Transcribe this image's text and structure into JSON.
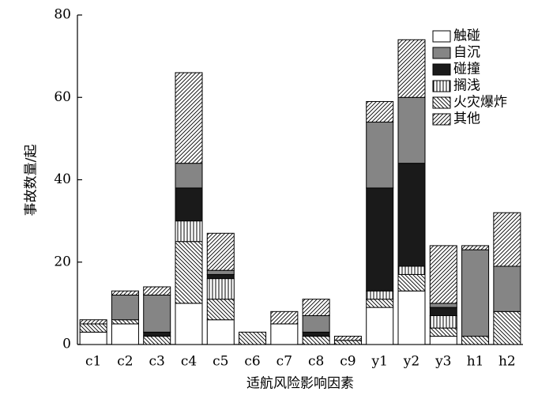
{
  "chart_data": {
    "type": "stacked-bar",
    "xlabel": "适航风险影响因素",
    "ylabel": "事故数量/起",
    "categories": [
      "c1",
      "c2",
      "c3",
      "c4",
      "c5",
      "c6",
      "c7",
      "c8",
      "c9",
      "y1",
      "y2",
      "y3",
      "h1",
      "h2"
    ],
    "series": [
      {
        "name": "触碰",
        "color": "#ffffff",
        "values": [
          3,
          5,
          0,
          10,
          6,
          0,
          5,
          0,
          0,
          9,
          13,
          2,
          0,
          0
        ]
      },
      {
        "name": "自沉",
        "color": "#858585",
        "values": [
          0,
          6,
          9,
          6,
          1,
          0,
          0,
          4,
          0,
          16,
          16,
          1,
          21,
          11
        ]
      },
      {
        "name": "碰撞",
        "color": "#1a1a1a",
        "values": [
          0,
          0,
          1,
          8,
          1,
          0,
          0,
          1,
          0,
          25,
          25,
          2,
          0,
          0
        ]
      },
      {
        "name": "搁浅",
        "color": "#ffffff",
        "values": [
          0,
          0,
          0,
          5,
          5,
          0,
          0,
          0,
          0,
          2,
          2,
          3,
          0,
          0
        ]
      },
      {
        "name": "火灾爆炸",
        "color": "#ffffff",
        "values": [
          2,
          1,
          2,
          15,
          5,
          3,
          0,
          2,
          1,
          2,
          4,
          2,
          2,
          8
        ]
      },
      {
        "name": "其他",
        "color": "#ffffff",
        "values": [
          1,
          1,
          2,
          22,
          9,
          0,
          3,
          4,
          1,
          5,
          14,
          14,
          1,
          13
        ]
      }
    ],
    "ylim": [
      0,
      80
    ],
    "yticks": [
      0,
      20,
      40,
      60,
      80
    ],
    "legend": "upper right"
  }
}
